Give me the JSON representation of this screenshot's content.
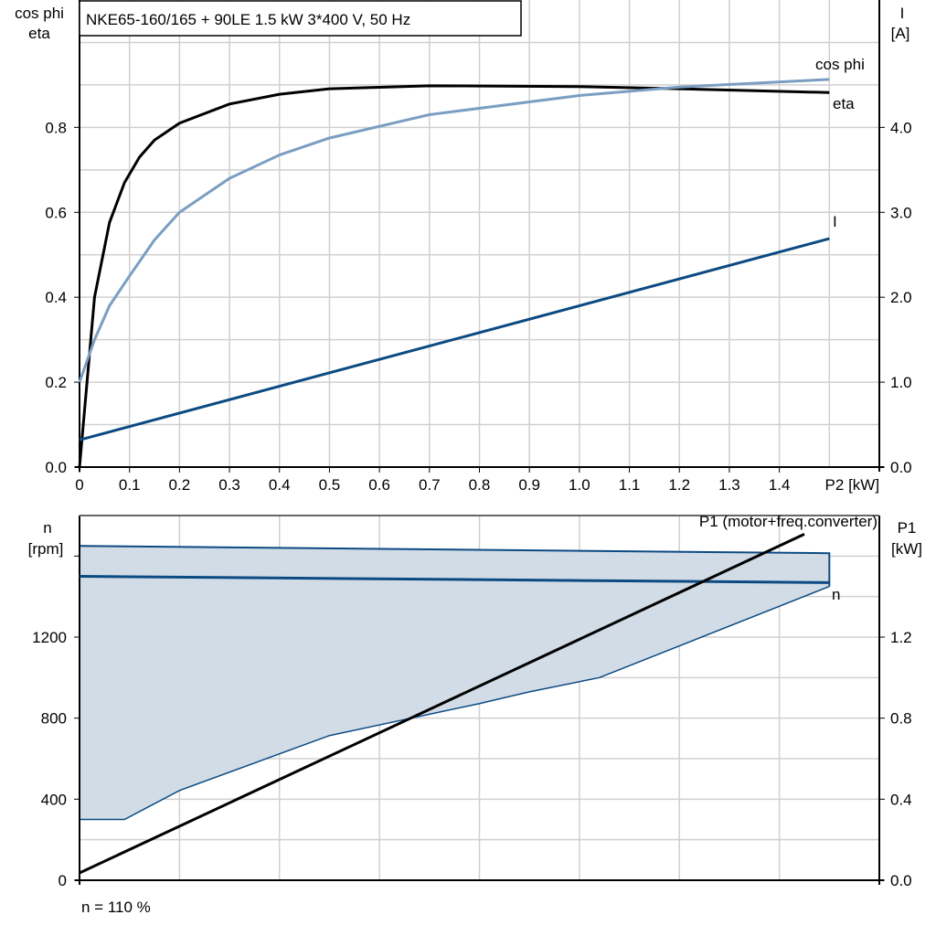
{
  "title": "NKE65-160/165 + 90LE   1.5 kW   3*400 V, 50 Hz",
  "footer": "n = 110 %",
  "colors": {
    "eta": "#000000",
    "cos_phi": "#7a9ec2",
    "current": "#0c4a82",
    "speed": "#0c4a82",
    "speed_band": "#d1dce7",
    "p1": "#000000",
    "grid": "#d0d0d0"
  },
  "chart_data": [
    {
      "type": "line",
      "xlabel": "P2 [kW]",
      "ylabel_left": [
        "cos phi",
        "eta"
      ],
      "ylabel_right": [
        "I",
        "[A]"
      ],
      "xlim": [
        0,
        1.6
      ],
      "ylim": [
        0,
        1.1
      ],
      "ylim_right": [
        0,
        5.5
      ],
      "x_ticks": [
        "0",
        "0.1",
        "0.2",
        "0.3",
        "0.4",
        "0.5",
        "0.6",
        "0.7",
        "0.8",
        "0.9",
        "1.0",
        "1.1",
        "1.2",
        "1.3",
        "1.4"
      ],
      "y_ticks": [
        "0.0",
        "0.2",
        "0.4",
        "0.6",
        "0.8"
      ],
      "y_ticks_right": [
        "0.0",
        "1.0",
        "2.0",
        "3.0",
        "4.0"
      ],
      "grid": true,
      "series": [
        {
          "name": "eta",
          "axis": "left",
          "x": [
            0,
            0.03,
            0.06,
            0.09,
            0.12,
            0.15,
            0.2,
            0.3,
            0.4,
            0.5,
            0.7,
            1.0,
            1.2,
            1.5
          ],
          "y": [
            0,
            0.4,
            0.576,
            0.67,
            0.73,
            0.77,
            0.81,
            0.855,
            0.878,
            0.891,
            0.898,
            0.896,
            0.891,
            0.882
          ]
        },
        {
          "name": "cos phi",
          "axis": "left",
          "x": [
            0,
            0.03,
            0.06,
            0.1,
            0.15,
            0.2,
            0.3,
            0.4,
            0.5,
            0.7,
            1.0,
            1.2,
            1.5
          ],
          "y": [
            0.2,
            0.3,
            0.38,
            0.45,
            0.535,
            0.6,
            0.68,
            0.735,
            0.775,
            0.83,
            0.875,
            0.895,
            0.913
          ]
        },
        {
          "name": "I",
          "axis": "right",
          "x": [
            0,
            1.5
          ],
          "y": [
            0.32,
            2.69
          ]
        }
      ]
    },
    {
      "type": "line",
      "xlim": [
        0,
        1.6
      ],
      "ylabel_left": [
        "n",
        "[rpm]"
      ],
      "ylabel_right": [
        "P1",
        "[kW]"
      ],
      "ylim": [
        0,
        1800
      ],
      "ylim_right": [
        0,
        1.8
      ],
      "y_ticks": [
        "0",
        "400",
        "800",
        "1200"
      ],
      "y_ticks_right": [
        "0.0",
        "0.4",
        "0.8",
        "1.2"
      ],
      "grid": true,
      "series": [
        {
          "name": "n",
          "axis": "left",
          "x": [
            0,
            1.5
          ],
          "y": [
            1500,
            1469
          ]
        },
        {
          "name": "P1 (motor+freq.converter)",
          "axis": "right",
          "x": [
            0,
            1.45
          ],
          "y": [
            0.036,
            1.708
          ]
        }
      ],
      "band": {
        "upper": {
          "x": [
            0,
            1.5
          ],
          "y": [
            1650,
            1614
          ]
        },
        "lower": {
          "x": [
            0,
            0.09,
            0.2,
            0.5,
            0.8,
            0.9,
            1.04,
            1.5
          ],
          "y": [
            300,
            300,
            443,
            714,
            872,
            930,
            1000,
            1450
          ]
        }
      }
    }
  ]
}
